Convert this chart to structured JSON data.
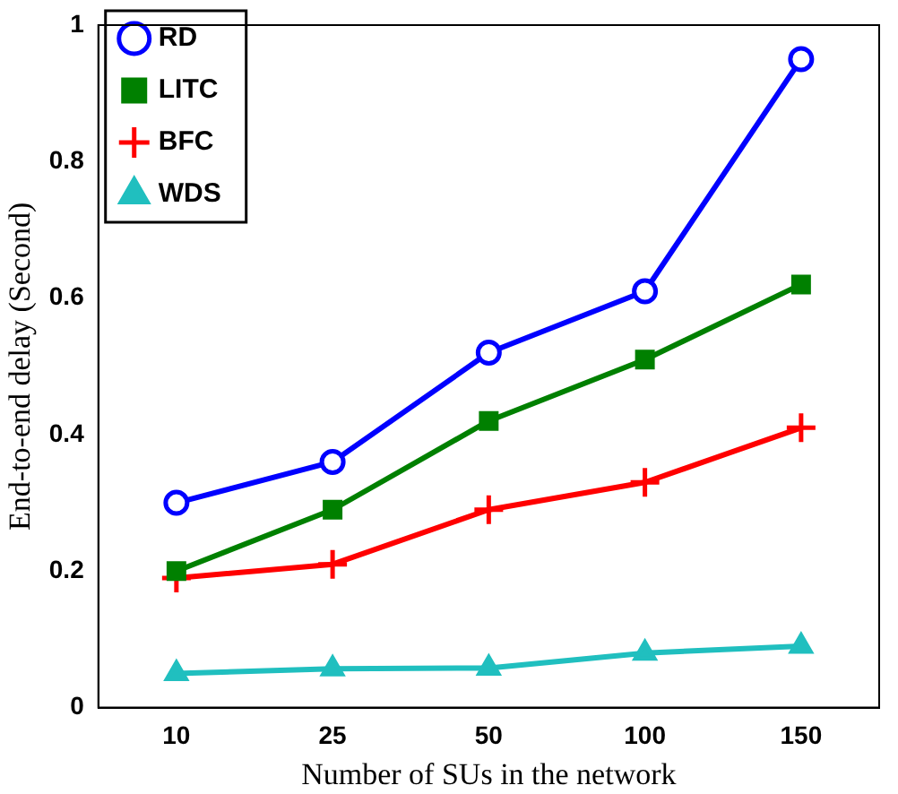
{
  "chart_data": {
    "type": "line",
    "xlabel": "Number of SUs in the network",
    "ylabel": "End-to-end delay (Second)",
    "categories": [
      "10",
      "25",
      "50",
      "100",
      "150"
    ],
    "ylim": [
      0,
      1
    ],
    "yticks": [
      0,
      0.2,
      0.4,
      0.6,
      0.8,
      1
    ],
    "grid": false,
    "legend": "top left",
    "series": [
      {
        "name": "RD",
        "color": "#0000ff",
        "marker": "circle",
        "values": [
          0.3,
          0.36,
          0.52,
          0.61,
          0.95
        ]
      },
      {
        "name": "LITC",
        "color": "#008000",
        "marker": "square",
        "values": [
          0.2,
          0.29,
          0.42,
          0.51,
          0.62
        ]
      },
      {
        "name": "BFC",
        "color": "#ff0000",
        "marker": "cross",
        "values": [
          0.19,
          0.21,
          0.29,
          0.33,
          0.41
        ]
      },
      {
        "name": "WDS",
        "color": "#20bfbf",
        "marker": "triangle",
        "values": [
          0.05,
          0.057,
          0.058,
          0.08,
          0.09
        ]
      }
    ]
  }
}
